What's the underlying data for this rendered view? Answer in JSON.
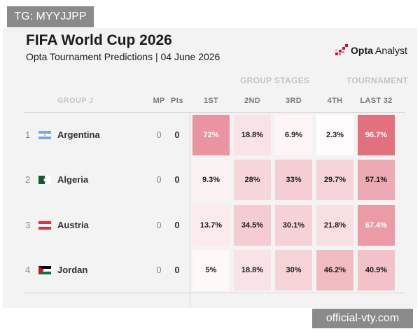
{
  "watermarks": {
    "top": "TG: MYYJJPP",
    "bottom": "official-vty.com"
  },
  "header": {
    "title": "FIFA World Cup 2026",
    "subtitle": "Opta Tournament Predictions | 04 June 2026"
  },
  "logo": {
    "brand": "Opta",
    "product": " Analyst",
    "accent": "#c8163a"
  },
  "sections": {
    "group_stages": "GROUP STAGES",
    "tournament": "TOURNAMENT"
  },
  "columns": {
    "group": "GROUP J",
    "mp": "MP",
    "pts": "Pts",
    "first": "1ST",
    "second": "2ND",
    "third": "3RD",
    "fourth": "4TH",
    "last32": "LAST 32"
  },
  "colors": {
    "heat_max": "#e16b7b",
    "heat_min": "#ffffff",
    "text_dark": "#1b1b1b"
  },
  "chart_data": {
    "type": "heatmap",
    "title": "FIFA World Cup 2026",
    "subtitle": "Opta Tournament Predictions | 04 June 2026",
    "columns": [
      "1ST",
      "2ND",
      "3RD",
      "4TH",
      "LAST 32"
    ],
    "rows": [
      {
        "rank": "1",
        "team": "Argentina",
        "flag": "argentina-flag-icon",
        "mp": "0",
        "pts": "0",
        "values": [
          72,
          18.8,
          6.9,
          2.3,
          96.7
        ],
        "labels": [
          "72%",
          "18.8%",
          "6.9%",
          "2.3%",
          "96.7%"
        ]
      },
      {
        "rank": "2",
        "team": "Algeria",
        "flag": "algeria-flag-icon",
        "mp": "0",
        "pts": "0",
        "values": [
          9.3,
          28,
          33,
          29.7,
          57.1
        ],
        "labels": [
          "9.3%",
          "28%",
          "33%",
          "29.7%",
          "57.1%"
        ]
      },
      {
        "rank": "3",
        "team": "Austria",
        "flag": "austria-flag-icon",
        "mp": "0",
        "pts": "0",
        "values": [
          13.7,
          34.5,
          30.1,
          21.8,
          67.4
        ],
        "labels": [
          "13.7%",
          "34.5%",
          "30.1%",
          "21.8%",
          "67.4%"
        ]
      },
      {
        "rank": "4",
        "team": "Jordan",
        "flag": "jordan-flag-icon",
        "mp": "0",
        "pts": "0",
        "values": [
          5,
          18.8,
          30,
          46.2,
          40.9
        ],
        "labels": [
          "5%",
          "18.8%",
          "30%",
          "46.2%",
          "40.9%"
        ]
      }
    ]
  }
}
